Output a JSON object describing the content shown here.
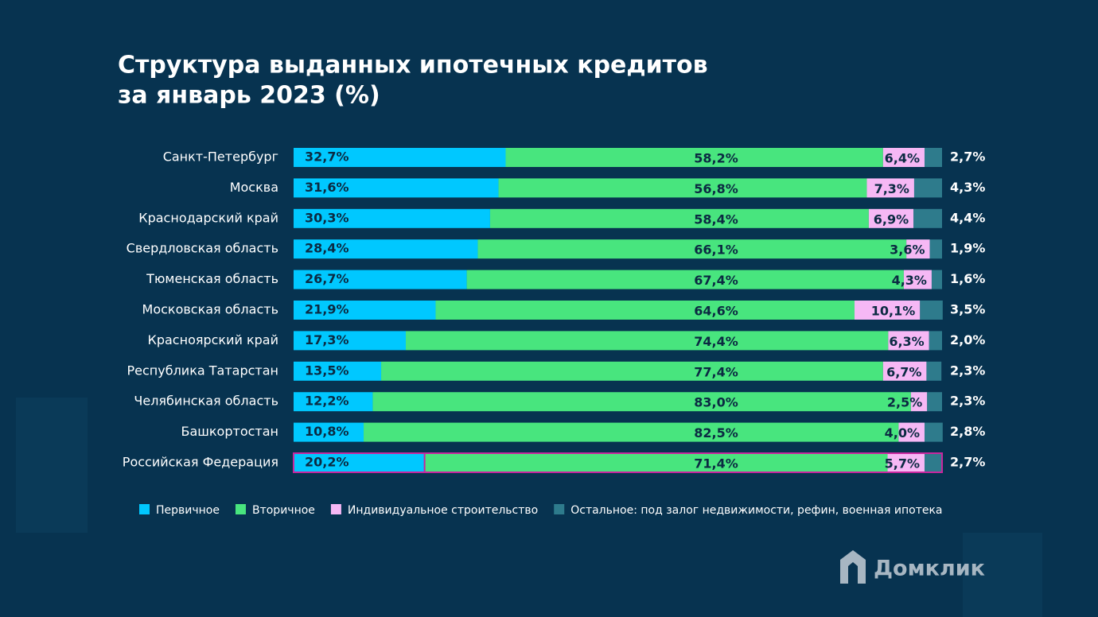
{
  "chart_data": {
    "type": "stacked-barh",
    "title": [
      "Структура выданных ипотечных кредитов",
      "за январь 2023 (%)"
    ],
    "categories": [
      "Санкт-Петербург",
      "Москва",
      "Краснодарский край",
      "Свердловская область",
      "Тюменская область",
      "Московская область",
      "Красноярский край",
      "Республика Татарстан",
      "Челябинская область",
      "Башкортостан",
      "Российская Федерация"
    ],
    "xlim": [
      0,
      100
    ],
    "series": [
      {
        "name": "Первичное",
        "color": "#00c8ff",
        "values": [
          32.7,
          31.6,
          30.3,
          28.4,
          26.7,
          21.9,
          17.3,
          13.5,
          12.2,
          10.8,
          20.2
        ],
        "value_labels": [
          "32,7%",
          "31,6%",
          "30,3%",
          "28,4%",
          "26,7%",
          "21,9%",
          "17,3%",
          "13,5%",
          "12,2%",
          "10,8%",
          "20,2%"
        ]
      },
      {
        "name": "Вторичное",
        "color": "#48e57e",
        "values": [
          58.2,
          56.8,
          58.4,
          66.1,
          67.4,
          64.6,
          74.4,
          77.4,
          83.0,
          82.5,
          71.4
        ],
        "value_labels": [
          "58,2%",
          "56,8%",
          "58,4%",
          "66,1%",
          "67,4%",
          "64,6%",
          "74,4%",
          "77,4%",
          "83,0%",
          "82,5%",
          "71,4%"
        ]
      },
      {
        "name": "Индивидуальное строительство",
        "color": "#f6b8f5",
        "values": [
          6.4,
          7.3,
          6.9,
          3.6,
          4.3,
          10.1,
          6.3,
          6.7,
          2.5,
          4.0,
          5.7
        ],
        "value_labels": [
          "6,4%",
          "7,3%",
          "6,9%",
          "3,6%",
          "4,3%",
          "10,1%",
          "6,3%",
          "6,7%",
          "2,5%",
          "4,0%",
          "5,7%"
        ]
      },
      {
        "name": "Остальное: под залог недвижимости, рефин, военная ипотека",
        "color": "#2e7b8c",
        "values": [
          2.7,
          4.3,
          4.4,
          1.9,
          1.6,
          3.5,
          2.0,
          2.3,
          2.3,
          2.8,
          2.7
        ],
        "value_labels": [
          "2,7%",
          "4,3%",
          "4,4%",
          "1,9%",
          "1,6%",
          "3,5%",
          "2,0%",
          "2,3%",
          "2,3%",
          "2,8%",
          "2,7%"
        ]
      }
    ],
    "brand": "Домклик"
  }
}
